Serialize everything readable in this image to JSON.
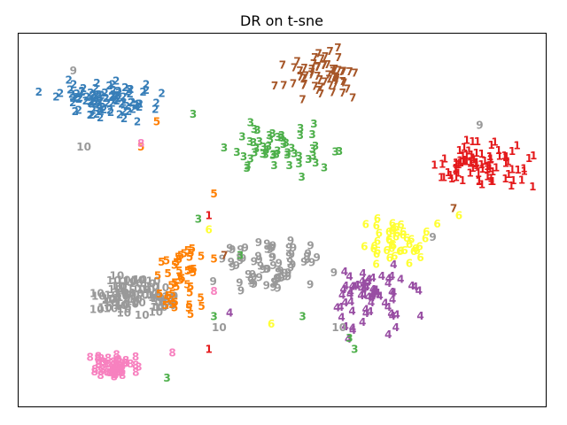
{
  "chart_data": {
    "type": "scatter",
    "title": "DR on t-sne",
    "xlabel": "",
    "ylabel": "",
    "axes_visible": false,
    "grid": false,
    "marker": "digit label text",
    "xlim": [
      0,
      100
    ],
    "ylim": [
      0,
      100
    ],
    "class_colors": {
      "1": "#e41a1c",
      "2": "#377eb8",
      "3": "#4daf4a",
      "4": "#984ea3",
      "5": "#ff7f00",
      "6": "#ffff33",
      "7": "#a65628",
      "8": "#f781bf",
      "9": "#999999",
      "10": "#999999"
    },
    "clusters": [
      {
        "label": "2",
        "center": [
          16,
          83
        ],
        "spread": [
          8,
          4
        ],
        "count": 95
      },
      {
        "label": "7",
        "center": [
          58,
          90
        ],
        "spread": [
          6,
          5
        ],
        "count": 60
      },
      {
        "label": "3",
        "center": [
          51,
          69
        ],
        "spread": [
          8,
          5
        ],
        "count": 55
      },
      {
        "label": "1",
        "center": [
          88,
          65
        ],
        "spread": [
          8,
          5
        ],
        "count": 85
      },
      {
        "label": "6",
        "center": [
          71,
          43
        ],
        "spread": [
          6,
          6
        ],
        "count": 45
      },
      {
        "label": "9",
        "center": [
          48,
          37
        ],
        "spread": [
          8,
          6
        ],
        "count": 70
      },
      {
        "label": "4",
        "center": [
          67,
          28
        ],
        "spread": [
          7,
          8
        ],
        "count": 65
      },
      {
        "label": "10",
        "center": [
          22,
          29
        ],
        "spread": [
          5,
          5
        ],
        "count": 60
      },
      {
        "label": "5",
        "center": [
          31,
          33
        ],
        "spread": [
          4,
          10
        ],
        "count": 45
      },
      {
        "label": "8",
        "center": [
          18,
          9
        ],
        "spread": [
          4,
          3
        ],
        "count": 50
      }
    ],
    "outliers": [
      {
        "label": "3",
        "x": 33,
        "y": 79
      },
      {
        "label": "5",
        "x": 26,
        "y": 77
      },
      {
        "label": "5",
        "x": 23,
        "y": 70
      },
      {
        "label": "9",
        "x": 10,
        "y": 91
      },
      {
        "label": "10",
        "x": 12,
        "y": 70
      },
      {
        "label": "8",
        "x": 23,
        "y": 71
      },
      {
        "label": "9",
        "x": 88,
        "y": 76
      },
      {
        "label": "7",
        "x": 83,
        "y": 53
      },
      {
        "label": "6",
        "x": 84,
        "y": 51
      },
      {
        "label": "3",
        "x": 34,
        "y": 50
      },
      {
        "label": "1",
        "x": 36,
        "y": 51
      },
      {
        "label": "5",
        "x": 37,
        "y": 57
      },
      {
        "label": "6",
        "x": 36,
        "y": 47
      },
      {
        "label": "7",
        "x": 39,
        "y": 40
      },
      {
        "label": "5",
        "x": 37,
        "y": 39
      },
      {
        "label": "3",
        "x": 42,
        "y": 40
      },
      {
        "label": "9",
        "x": 79,
        "y": 45
      },
      {
        "label": "8",
        "x": 37,
        "y": 30
      },
      {
        "label": "3",
        "x": 37,
        "y": 23
      },
      {
        "label": "4",
        "x": 40,
        "y": 24
      },
      {
        "label": "10",
        "x": 38,
        "y": 20
      },
      {
        "label": "1",
        "x": 36,
        "y": 14
      },
      {
        "label": "8",
        "x": 29,
        "y": 13
      },
      {
        "label": "3",
        "x": 28,
        "y": 6
      },
      {
        "label": "6",
        "x": 48,
        "y": 21
      },
      {
        "label": "3",
        "x": 54,
        "y": 23
      },
      {
        "label": "3",
        "x": 63,
        "y": 17
      },
      {
        "label": "10",
        "x": 61,
        "y": 20
      },
      {
        "label": "3",
        "x": 64,
        "y": 14
      }
    ]
  }
}
